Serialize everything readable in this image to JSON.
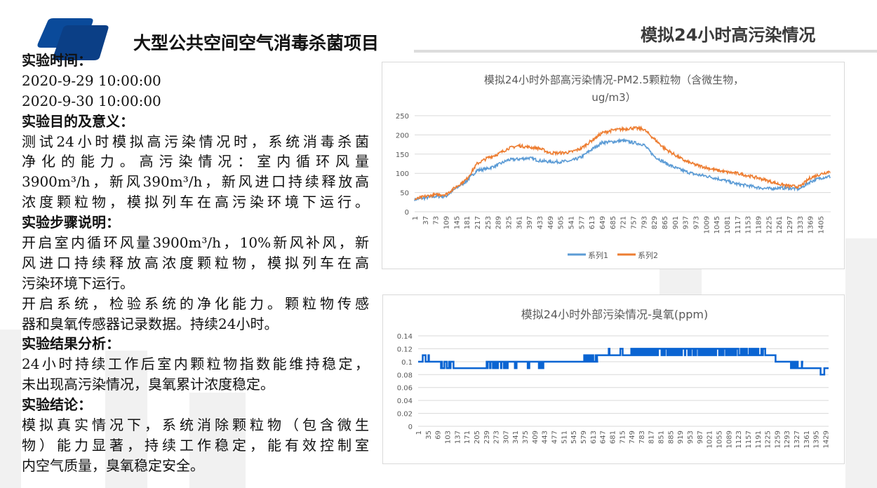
{
  "header": {
    "title": "大型公共空间空气消毒杀菌项目",
    "section_title": "模拟24小时高污染情况"
  },
  "body": {
    "lines": [
      {
        "text": "实验时间：",
        "heading": true
      },
      {
        "text": "2020-9-29 10:00:00",
        "short": true
      },
      {
        "text": "2020-9-30 10:00:00",
        "short": true
      },
      {
        "text": "实验目的及意义：",
        "heading": true
      },
      {
        "text": "测试24小时模拟高污染情况时，系统消毒杀菌"
      },
      {
        "text": "净化的能力。高污染情况：室内循环风量"
      },
      {
        "text": "3900m³/h，新风390m³/h，新风进口持续释放高"
      },
      {
        "text": "浓度颗粒物，模拟列车在高污染环境下运行。"
      },
      {
        "text": "实验步骤说明：",
        "heading": true
      },
      {
        "text": "开启室内循环风量3900m³/h，10%新风补风，新"
      },
      {
        "text": "风进口持续释放高浓度颗粒物，模拟列车在高"
      },
      {
        "text": "污染环境下运行。",
        "short": true
      },
      {
        "text": "开启系统，检验系统的净化能力。颗粒物传感"
      },
      {
        "text": "器和臭氧传感器记录数据。持续24小时。",
        "short": true
      },
      {
        "text": "实验结果分析：",
        "heading": true
      },
      {
        "text": "24小时持续工作后室内颗粒物指数能维持稳定，"
      },
      {
        "text": "未出现高污染情况，臭氧累计浓度稳定。",
        "short": true
      },
      {
        "text": "实验结论：",
        "heading": true
      },
      {
        "text": "模拟真实情况下，系统消除颗粒物（包含微生"
      },
      {
        "text": "物）能力显著，持续工作稳定，能有效控制室"
      },
      {
        "text": "内空气质量，臭氧稳定安全。",
        "short": true
      }
    ]
  },
  "colors": {
    "logo": "#0a4a9a",
    "series1": "#5b9bd5",
    "series2": "#ed7d31",
    "ozone": "#0a64d2",
    "grid": "#d9d9d9",
    "axis_text": "#595959"
  },
  "chart_data": [
    {
      "type": "line",
      "title_line1": "模拟24小时外部高污染情况-PM2.5颗粒物（含微生物，",
      "title_line2": "ug/m3）",
      "xlabel": "",
      "ylabel": "",
      "ylim": [
        0,
        250
      ],
      "yticks": [
        "0",
        "50",
        "100",
        "150",
        "200",
        "250"
      ],
      "x_range": [
        1,
        1440
      ],
      "xticks": [
        "1",
        "37",
        "73",
        "109",
        "145",
        "181",
        "217",
        "253",
        "289",
        "325",
        "361",
        "397",
        "433",
        "469",
        "505",
        "541",
        "577",
        "613",
        "649",
        "685",
        "721",
        "757",
        "793",
        "829",
        "865",
        "901",
        "937",
        "973",
        "1009",
        "1045",
        "1081",
        "1117",
        "1153",
        "1189",
        "1225",
        "1261",
        "1297",
        "1333",
        "1369",
        "1405"
      ],
      "grid": true,
      "legend": "bottom",
      "sample_x": [
        1,
        37,
        73,
        109,
        145,
        181,
        217,
        253,
        289,
        325,
        361,
        397,
        433,
        469,
        505,
        541,
        577,
        613,
        649,
        685,
        721,
        757,
        793,
        829,
        865,
        901,
        937,
        973,
        1009,
        1045,
        1081,
        1117,
        1153,
        1189,
        1225,
        1261,
        1297,
        1333,
        1369,
        1405,
        1440
      ],
      "series": [
        {
          "name": "系列1",
          "values": [
            32,
            36,
            40,
            40,
            62,
            80,
            108,
            112,
            122,
            135,
            137,
            140,
            133,
            130,
            130,
            132,
            142,
            162,
            180,
            182,
            185,
            180,
            175,
            145,
            128,
            115,
            105,
            97,
            93,
            87,
            80,
            72,
            68,
            63,
            60,
            62,
            61,
            60,
            78,
            88,
            92
          ]
        },
        {
          "name": "系列2",
          "values": [
            32,
            40,
            44,
            45,
            65,
            85,
            125,
            140,
            150,
            165,
            172,
            168,
            165,
            153,
            153,
            155,
            165,
            185,
            205,
            212,
            215,
            218,
            215,
            190,
            165,
            148,
            132,
            122,
            115,
            108,
            103,
            100,
            94,
            88,
            80,
            72,
            67,
            65,
            88,
            98,
            106
          ]
        }
      ]
    },
    {
      "type": "line",
      "title": "模拟24小时外部污染情况-臭氧(ppm)",
      "xlabel": "",
      "ylabel": "",
      "ylim": [
        0,
        0.14
      ],
      "yticks": [
        "0",
        "0.02",
        "0.04",
        "0.06",
        "0.08",
        "0.1",
        "0.12",
        "0.14"
      ],
      "x_range": [
        1,
        1440
      ],
      "xticks": [
        "1",
        "35",
        "69",
        "103",
        "137",
        "171",
        "205",
        "239",
        "273",
        "307",
        "341",
        "375",
        "409",
        "443",
        "477",
        "511",
        "545",
        "579",
        "613",
        "647",
        "681",
        "715",
        "749",
        "783",
        "817",
        "851",
        "885",
        "919",
        "953",
        "987",
        "1021",
        "1055",
        "1089",
        "1123",
        "1157",
        "1191",
        "1225",
        "1259",
        "1293",
        "1327",
        "1361",
        "1395",
        "1429"
      ],
      "grid": true,
      "legend": "none",
      "steps": [
        {
          "from": 1,
          "to": 15,
          "value": 0.1
        },
        {
          "from": 15,
          "to": 43,
          "value": 0.1,
          "alt": 0.11
        },
        {
          "from": 43,
          "to": 77,
          "value": 0.1
        },
        {
          "from": 77,
          "to": 125,
          "value": 0.09,
          "alt": 0.1
        },
        {
          "from": 125,
          "to": 235,
          "value": 0.09
        },
        {
          "from": 235,
          "to": 318,
          "value": 0.1,
          "alt": 0.09
        },
        {
          "from": 318,
          "to": 340,
          "value": 0.1
        },
        {
          "from": 340,
          "to": 346,
          "value": 0.09
        },
        {
          "from": 346,
          "to": 385,
          "value": 0.1
        },
        {
          "from": 385,
          "to": 391,
          "value": 0.09
        },
        {
          "from": 391,
          "to": 424,
          "value": 0.1
        },
        {
          "from": 424,
          "to": 442,
          "value": 0.1,
          "alt": 0.09
        },
        {
          "from": 442,
          "to": 581,
          "value": 0.1
        },
        {
          "from": 581,
          "to": 628,
          "value": 0.11,
          "alt": 0.1
        },
        {
          "from": 628,
          "to": 669,
          "value": 0.11
        },
        {
          "from": 669,
          "to": 672,
          "value": 0.12
        },
        {
          "from": 672,
          "to": 710,
          "value": 0.11
        },
        {
          "from": 710,
          "to": 720,
          "value": 0.12,
          "alt": 0.11
        },
        {
          "from": 720,
          "to": 744,
          "value": 0.11
        },
        {
          "from": 744,
          "to": 1218,
          "value": 0.11,
          "alt": 0.12
        },
        {
          "from": 1218,
          "to": 1254,
          "value": 0.11
        },
        {
          "from": 1254,
          "to": 1306,
          "value": 0.1
        },
        {
          "from": 1306,
          "to": 1347,
          "value": 0.09,
          "alt": 0.1
        },
        {
          "from": 1347,
          "to": 1412,
          "value": 0.09
        },
        {
          "from": 1412,
          "to": 1425,
          "value": 0.08
        },
        {
          "from": 1425,
          "to": 1440,
          "value": 0.09
        }
      ]
    }
  ]
}
